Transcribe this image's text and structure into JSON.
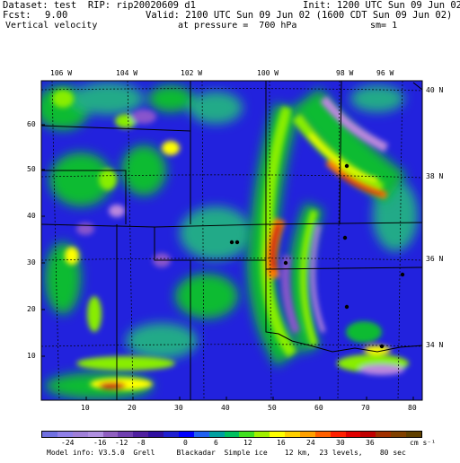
{
  "header": {
    "dataset_line": "Dataset: test  RIP: rip20020609 d1",
    "init_line": "Init: 1200 UTC Sun 09 Jun 02",
    "fcst_label": "Fcst:",
    "fcst_value": "9.00",
    "valid_line": "Valid: 2100 UTC Sun 09 Jun 02 (1600 CDT Sun 09 Jun 02)",
    "field_name": "Vertical velocity",
    "pressure_line": "at pressure =  700 hPa",
    "sm_line": "sm= 1"
  },
  "map": {
    "top_lon_labels": [
      "106 W",
      "104 W",
      "102 W",
      "100 W",
      "98 W",
      "96 W"
    ],
    "right_lat_labels": [
      "40 N",
      "38 N",
      "36 N",
      "34 N"
    ],
    "left_ticks": [
      "60",
      "50",
      "40",
      "30",
      "20",
      "10"
    ],
    "bottom_ticks": [
      "10",
      "20",
      "30",
      "40",
      "50",
      "60",
      "70",
      "80"
    ],
    "colors": {
      "background_field": "#2222dd",
      "strong_up": "#cc1111",
      "up_orange": "#ff7700",
      "up_yellow": "#ffff00",
      "up_lime": "#88ee00",
      "up_green": "#11bb33",
      "weak_teal": "#22aa88",
      "down_purple": "#8855cc",
      "down_violet": "#bb88dd"
    }
  },
  "colorbar": {
    "labels": [
      "-24",
      "-16",
      "-12",
      "-8",
      "0",
      "6",
      "12",
      "16",
      "24",
      "30",
      "36"
    ],
    "units": "cm s⁻¹",
    "colors": [
      "#7070e0",
      "#9080e8",
      "#a080d8",
      "#b090e0",
      "#9060c0",
      "#7040b0",
      "#5020a0",
      "#3010a0",
      "#2020d0",
      "#0000ff",
      "#2060f0",
      "#00a0a0",
      "#00c060",
      "#40e020",
      "#a0f000",
      "#ffff00",
      "#ffd000",
      "#ffa000",
      "#ff6000",
      "#ff2000",
      "#e00000",
      "#c00000",
      "#a03000",
      "#804000",
      "#604000"
    ]
  },
  "footer": {
    "model_info": "Model info: V3.5.0  Grell     Blackadar  Simple ice    12 km,  23 levels,    80 sec"
  }
}
